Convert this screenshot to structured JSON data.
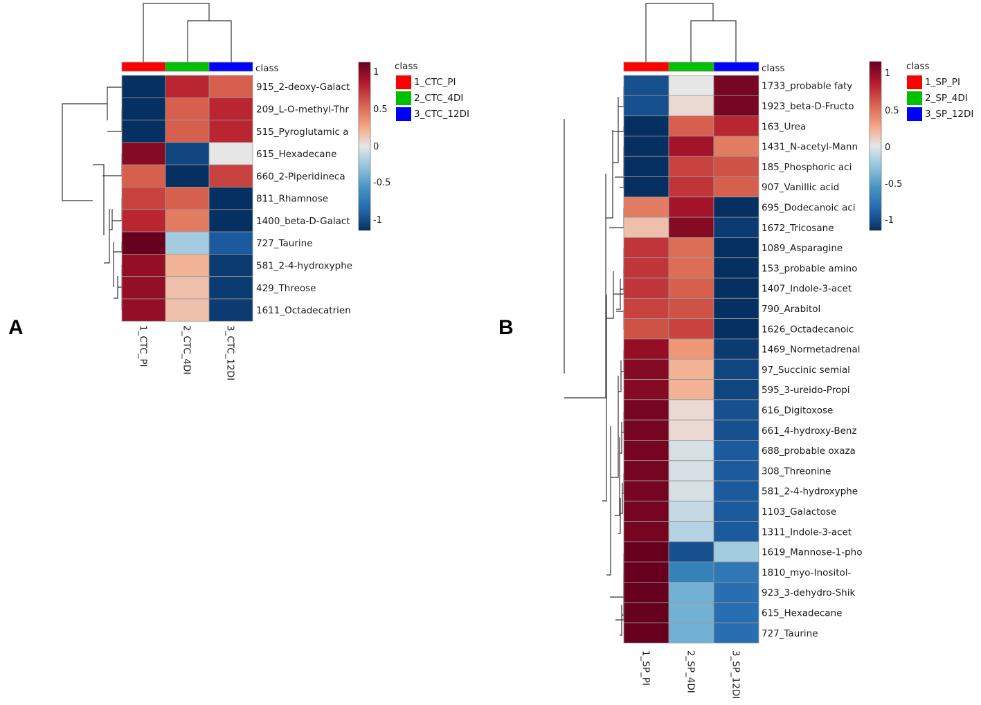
{
  "chart_data": [
    {
      "type": "heatmap",
      "panel": "A",
      "class_label": "class",
      "columns": [
        "1_CTC_PI",
        "2_CTC_4DI",
        "3_CTC_12DI"
      ],
      "class_legend": {
        "title": "class",
        "items": [
          {
            "label": "1_CTC_PI",
            "color": "#ff0000"
          },
          {
            "label": "2_CTC_4DI",
            "color": "#00c000"
          },
          {
            "label": "3_CTC_12DI",
            "color": "#0000ff"
          }
        ]
      },
      "colorbar": {
        "range": [
          -1,
          1
        ],
        "ticks": [
          "1",
          "0.5",
          "0",
          "-0.5",
          "-1"
        ]
      },
      "rows": [
        "915_2-deoxy-Galact",
        "209_L-O-methyl-Thr",
        "515_Pyroglutamic a",
        "615_Hexadecane",
        "660_2-Piperidineca",
        "811_Rhamnose",
        "1400_beta-D-Galact",
        "727_Taurine",
        "581_2-4-hydroxyphe",
        "429_Threose",
        "1611_Octadecatrien"
      ],
      "values": [
        [
          -1.0,
          0.7,
          0.5
        ],
        [
          -1.0,
          0.5,
          0.7
        ],
        [
          -1.0,
          0.5,
          0.7
        ],
        [
          0.9,
          -0.9,
          0.0
        ],
        [
          0.5,
          -1.0,
          0.6
        ],
        [
          0.6,
          0.5,
          -1.0
        ],
        [
          0.7,
          0.4,
          -1.0
        ],
        [
          1.0,
          -0.2,
          -0.8
        ],
        [
          0.85,
          0.2,
          -0.95
        ],
        [
          0.85,
          0.15,
          -0.95
        ],
        [
          0.85,
          0.15,
          -0.95
        ]
      ]
    },
    {
      "type": "heatmap",
      "panel": "B",
      "class_label": "class",
      "columns": [
        "1_SP_PI",
        "2_SP_4DI",
        "3_SP_12DI"
      ],
      "class_legend": {
        "title": "class",
        "items": [
          {
            "label": "1_SP_PI",
            "color": "#ff0000"
          },
          {
            "label": "2_SP_4DI",
            "color": "#00c000"
          },
          {
            "label": "3_SP_12DI",
            "color": "#0000ff"
          }
        ]
      },
      "colorbar": {
        "range": [
          -1,
          1
        ],
        "ticks": [
          "1",
          "0.5",
          "0",
          "-0.5",
          "-1"
        ]
      },
      "rows": [
        "1733_probable faty",
        "1923_beta-D-Fructo",
        "163_Urea",
        "1431_N-acetyl-Mann",
        "185_Phosphoric aci",
        "907_Vanillic acid",
        "695_Dodecanoic aci",
        "1672_Tricosane",
        "1089_Asparagine",
        "153_probable amino",
        "1407_Indole-3-acet",
        "790_Arabitol",
        "1626_Octadecanoic",
        "1469_Normetadrenal",
        "97_Succinic semial",
        "595_3-ureido-Propi",
        "616_Digitoxose",
        "661_4-hydroxy-Benz",
        "688_probable oxaza",
        "308_Threonine",
        "581_2-4-hydroxyphe",
        "1103_Galactose",
        "1311_Indole-3-acet",
        "1619_Mannose-1-pho",
        "1810_myo-Inositol-",
        "923_3-dehydro-Shik",
        "615_Hexadecane",
        "727_Taurine"
      ],
      "values": [
        [
          -0.85,
          0.0,
          0.95
        ],
        [
          -0.85,
          0.05,
          0.95
        ],
        [
          -1.0,
          0.5,
          0.7
        ],
        [
          -1.0,
          0.8,
          0.4
        ],
        [
          -1.0,
          0.6,
          0.55
        ],
        [
          -1.0,
          0.65,
          0.5
        ],
        [
          0.4,
          0.8,
          -1.0
        ],
        [
          0.15,
          0.9,
          -0.95
        ],
        [
          0.65,
          0.45,
          -1.0
        ],
        [
          0.65,
          0.45,
          -1.0
        ],
        [
          0.65,
          0.5,
          -1.0
        ],
        [
          0.6,
          0.55,
          -1.0
        ],
        [
          0.55,
          0.6,
          -1.0
        ],
        [
          0.85,
          0.3,
          -0.95
        ],
        [
          0.9,
          0.2,
          -0.9
        ],
        [
          0.9,
          0.2,
          -0.9
        ],
        [
          0.95,
          0.05,
          -0.85
        ],
        [
          0.95,
          0.05,
          -0.85
        ],
        [
          0.95,
          -0.05,
          -0.8
        ],
        [
          0.95,
          -0.05,
          -0.8
        ],
        [
          0.95,
          -0.05,
          -0.8
        ],
        [
          0.95,
          -0.1,
          -0.8
        ],
        [
          0.95,
          -0.15,
          -0.8
        ],
        [
          1.0,
          -0.85,
          -0.2
        ],
        [
          1.0,
          -0.6,
          -0.65
        ],
        [
          1.0,
          -0.35,
          -0.7
        ],
        [
          1.0,
          -0.35,
          -0.7
        ],
        [
          1.0,
          -0.35,
          -0.7
        ]
      ]
    }
  ]
}
